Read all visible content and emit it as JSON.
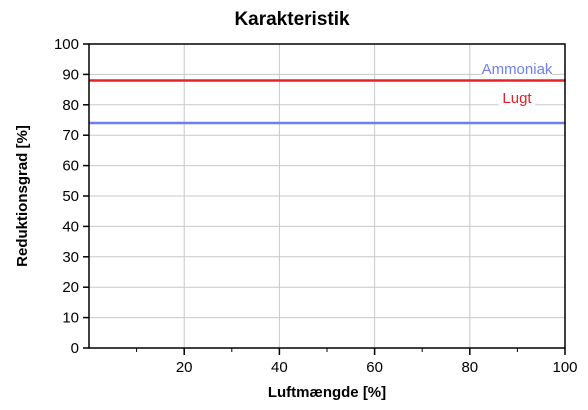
{
  "chart_data": {
    "type": "line",
    "title": "Karakteristik",
    "xlabel": "Luftmængde [%]",
    "ylabel": "Reduktionsgrad [%]",
    "xlim": [
      0,
      100
    ],
    "ylim": [
      0,
      100
    ],
    "x_ticks": [
      20,
      40,
      60,
      80,
      100
    ],
    "y_ticks": [
      0,
      10,
      20,
      30,
      40,
      50,
      60,
      70,
      80,
      90,
      100
    ],
    "grid": true,
    "legend_placement": "top-right",
    "series": [
      {
        "name": "Ammoniak",
        "color": "#6e7ff0",
        "x": [
          0,
          100
        ],
        "y": [
          74,
          74
        ]
      },
      {
        "name": "Lugt",
        "color": "#e8202a",
        "x": [
          0,
          100
        ],
        "y": [
          88,
          88
        ]
      }
    ]
  }
}
